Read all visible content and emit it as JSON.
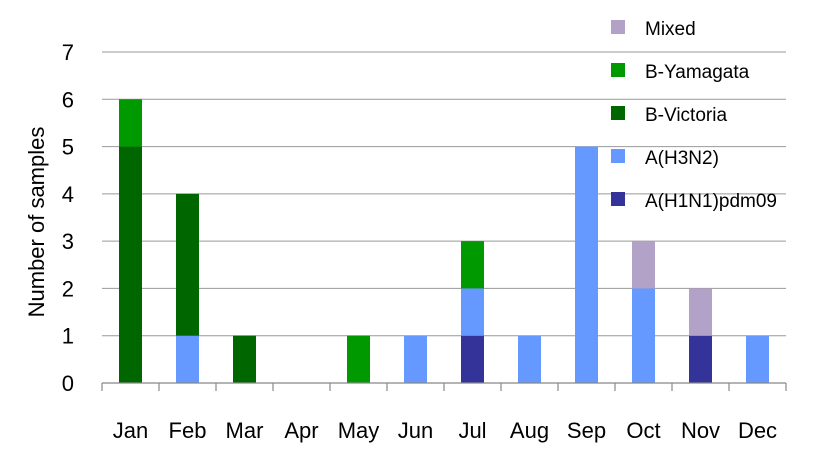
{
  "chart_data": {
    "type": "bar",
    "stacked": true,
    "title": "",
    "xlabel": "",
    "ylabel": "Number of samples",
    "ylim": [
      0,
      7
    ],
    "yticks": [
      0,
      1,
      2,
      3,
      4,
      5,
      6,
      7
    ],
    "grid": true,
    "legend_position": "top-right",
    "categories": [
      "Jan",
      "Feb",
      "Mar",
      "Apr",
      "May",
      "Jun",
      "Jul",
      "Aug",
      "Sep",
      "Oct",
      "Nov",
      "Dec"
    ],
    "series": [
      {
        "name": "A(H1N1)pdm09",
        "color": "#333399",
        "values": [
          0,
          0,
          0,
          0,
          0,
          0,
          1,
          0,
          0,
          0,
          1,
          0
        ]
      },
      {
        "name": "A(H3N2)",
        "color": "#6699ff",
        "values": [
          0,
          1,
          0,
          0,
          0,
          1,
          1,
          1,
          5,
          2,
          0,
          1
        ]
      },
      {
        "name": "B-Victoria",
        "color": "#006600",
        "values": [
          5,
          3,
          1,
          0,
          0,
          0,
          0,
          0,
          0,
          0,
          0,
          0
        ]
      },
      {
        "name": "B-Yamagata",
        "color": "#009900",
        "values": [
          1,
          0,
          0,
          0,
          1,
          0,
          1,
          0,
          0,
          0,
          0,
          0
        ]
      },
      {
        "name": "Mixed",
        "color": "#b3a2c7",
        "values": [
          0,
          0,
          0,
          0,
          0,
          0,
          0,
          0,
          0,
          1,
          1,
          0
        ]
      }
    ],
    "legend_order": [
      "Mixed",
      "B-Yamagata",
      "B-Victoria",
      "A(H3N2)",
      "A(H1N1)pdm09"
    ]
  }
}
